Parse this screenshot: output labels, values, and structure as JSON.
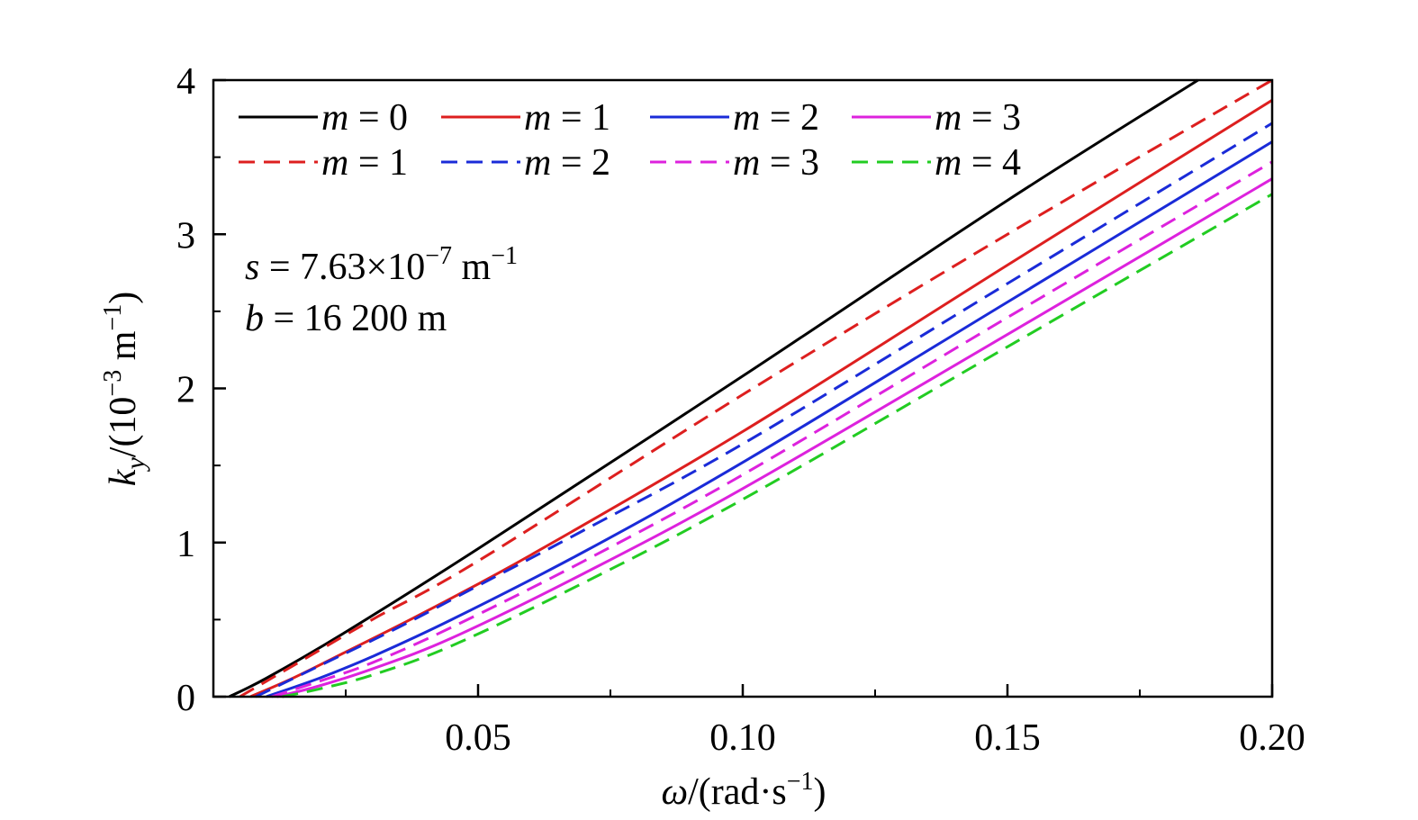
{
  "chart_data": {
    "type": "line",
    "xlabel": {
      "symbol": "ω",
      "unit": "/(rad·s",
      "exp": "−1",
      "close": ")"
    },
    "ylabel": {
      "symbol": "k",
      "sub": "y",
      "unit_a": "/(10",
      "exp_a": "−3",
      "unit_b": " m",
      "exp_b": "−1",
      "close": ")"
    },
    "xlim": [
      0,
      0.2
    ],
    "ylim": [
      0,
      4
    ],
    "x_ticks": [
      {
        "value": 0.05,
        "label": "0.05"
      },
      {
        "value": 0.1,
        "label": "0.10"
      },
      {
        "value": 0.15,
        "label": "0.15"
      },
      {
        "value": 0.2,
        "label": "0.20"
      }
    ],
    "x_minor_ticks": [
      0.025,
      0.075,
      0.125,
      0.175
    ],
    "y_ticks": [
      {
        "value": 0,
        "label": "0"
      },
      {
        "value": 1,
        "label": "1"
      },
      {
        "value": 2,
        "label": "2"
      },
      {
        "value": 3,
        "label": "3"
      },
      {
        "value": 4,
        "label": "4"
      }
    ],
    "y_minor_ticks": [
      0.5,
      1.5,
      2.5,
      3.5
    ],
    "grid": false,
    "legend_position": "top-left",
    "annotations": [
      {
        "var": "s",
        "text": " = 7.63×10",
        "exp": "−7",
        "unit": " m",
        "unit_exp": "−1"
      },
      {
        "var": "b",
        "text": " = 16 200 m"
      }
    ],
    "series": [
      {
        "legend_var": "m",
        "legend_text": " = 0",
        "color": "#000000",
        "dash": "solid",
        "x": [
          0.003,
          0.01,
          0.025,
          0.05,
          0.1,
          0.15,
          0.186
        ],
        "y": [
          0,
          0.12,
          0.42,
          0.96,
          2.08,
          3.22,
          4.0
        ]
      },
      {
        "legend_var": "m",
        "legend_text": " = 1",
        "color": "#dd1f1f",
        "dash": "solid",
        "x": [
          0.007,
          0.015,
          0.025,
          0.04,
          0.06,
          0.1,
          0.15,
          0.2
        ],
        "y": [
          0,
          0.12,
          0.29,
          0.55,
          0.92,
          1.72,
          2.8,
          3.87
        ]
      },
      {
        "legend_var": "m",
        "legend_text": " = 2",
        "color": "#1a2bd8",
        "dash": "solid",
        "x": [
          0.01,
          0.02,
          0.03,
          0.045,
          0.07,
          0.1,
          0.15,
          0.2
        ],
        "y": [
          0,
          0.12,
          0.26,
          0.5,
          0.94,
          1.52,
          2.56,
          3.6
        ]
      },
      {
        "legend_var": "m",
        "legend_text": " = 3",
        "color": "#dd22dd",
        "dash": "solid",
        "x": [
          0.012,
          0.02,
          0.03,
          0.045,
          0.07,
          0.1,
          0.15,
          0.2
        ],
        "y": [
          0,
          0.07,
          0.18,
          0.38,
          0.8,
          1.35,
          2.35,
          3.36
        ]
      },
      {
        "legend_var": "m",
        "legend_text": " = 1",
        "color": "#dd1f1f",
        "dash": "dashed",
        "x": [
          0.005,
          0.015,
          0.03,
          0.05,
          0.1,
          0.15,
          0.2
        ],
        "y": [
          0,
          0.2,
          0.5,
          0.88,
          1.96,
          3.0,
          4.0
        ]
      },
      {
        "legend_var": "m",
        "legend_text": " = 2",
        "color": "#1a2bd8",
        "dash": "dashed",
        "x": [
          0.008,
          0.02,
          0.035,
          0.05,
          0.07,
          0.1,
          0.15,
          0.2
        ],
        "y": [
          0,
          0.2,
          0.45,
          0.72,
          1.08,
          1.64,
          2.68,
          3.72
        ]
      },
      {
        "legend_var": "m",
        "legend_text": " = 3",
        "color": "#dd22dd",
        "dash": "dashed",
        "x": [
          0.011,
          0.02,
          0.03,
          0.045,
          0.07,
          0.1,
          0.15,
          0.2
        ],
        "y": [
          0,
          0.1,
          0.22,
          0.45,
          0.88,
          1.44,
          2.46,
          3.47
        ]
      },
      {
        "legend_var": "m",
        "legend_text": " = 4",
        "color": "#22cc22",
        "dash": "dashed",
        "x": [
          0.013,
          0.02,
          0.03,
          0.045,
          0.07,
          0.1,
          0.15,
          0.2
        ],
        "y": [
          0,
          0.05,
          0.14,
          0.33,
          0.74,
          1.28,
          2.27,
          3.26
        ]
      }
    ]
  }
}
